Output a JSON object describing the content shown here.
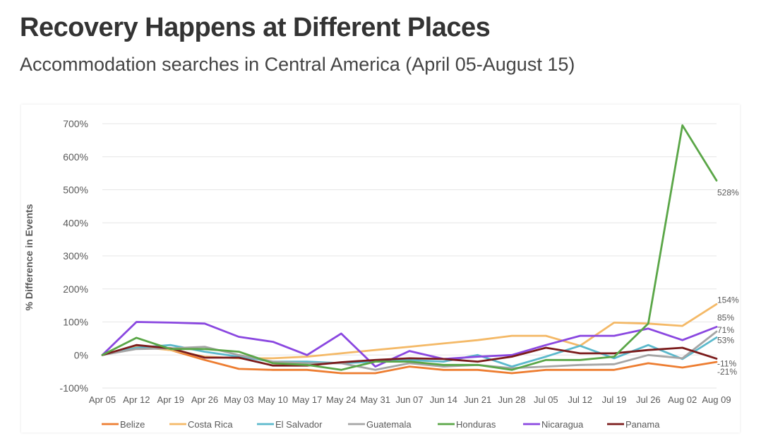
{
  "header": {
    "title": "Recovery Happens at Different Places",
    "subtitle": "Accommodation searches in Central America (April 05-August 15)"
  },
  "chart_data": {
    "type": "line",
    "title": "",
    "xlabel": "",
    "ylabel": "% Difference in Events",
    "ylim": [
      -100,
      700
    ],
    "yticks": [
      -100,
      0,
      100,
      200,
      300,
      400,
      500,
      600,
      700
    ],
    "ytick_labels": [
      "-100%",
      "0%",
      "100%",
      "200%",
      "300%",
      "400%",
      "500%",
      "600%",
      "700%"
    ],
    "categories": [
      "Apr 05",
      "Apr 12",
      "Apr 19",
      "Apr 26",
      "May 03",
      "May 10",
      "May 17",
      "May 24",
      "May 31",
      "Jun 07",
      "Jun 14",
      "Jun 21",
      "Jun 28",
      "Jul 05",
      "Jul 12",
      "Jul 19",
      "Jul 26",
      "Aug 02",
      "Aug 09"
    ],
    "legend_position": "bottom",
    "series": [
      {
        "name": "Belize",
        "color": "#ed7d31",
        "values": [
          0,
          28,
          15,
          -15,
          -42,
          -45,
          -45,
          -55,
          -55,
          -35,
          -45,
          -45,
          -55,
          -45,
          -45,
          -45,
          -25,
          -38,
          -21
        ],
        "end_label": "-21%"
      },
      {
        "name": "Costa Rica",
        "color": "#f4b967",
        "values": [
          0,
          25,
          15,
          -5,
          -10,
          -10,
          -5,
          5,
          15,
          25,
          35,
          45,
          58,
          58,
          28,
          98,
          95,
          88,
          154
        ],
        "end_label": "154%"
      },
      {
        "name": "El Salvador",
        "color": "#5bb9cc",
        "values": [
          0,
          22,
          30,
          10,
          -5,
          -20,
          -20,
          -25,
          -20,
          -15,
          -20,
          0,
          -35,
          -5,
          28,
          -10,
          30,
          -12,
          53
        ],
        "end_label": "53%"
      },
      {
        "name": "Guatemala",
        "color": "#a5a5a5",
        "values": [
          0,
          18,
          20,
          25,
          0,
          -20,
          -25,
          -25,
          -45,
          -25,
          -35,
          -30,
          -40,
          -35,
          -30,
          -28,
          0,
          -10,
          71
        ],
        "end_label": "71%"
      },
      {
        "name": "Honduras",
        "color": "#5aa647",
        "values": [
          0,
          52,
          18,
          18,
          10,
          -25,
          -30,
          -45,
          -20,
          -20,
          -30,
          -30,
          -45,
          -15,
          -15,
          -5,
          95,
          695,
          528
        ],
        "end_label": "528%"
      },
      {
        "name": "Nicaragua",
        "color": "#8a47e0",
        "values": [
          0,
          100,
          98,
          95,
          55,
          40,
          0,
          65,
          -35,
          12,
          -12,
          -5,
          0,
          30,
          58,
          58,
          80,
          45,
          85
        ],
        "end_label": "85%"
      },
      {
        "name": "Panama",
        "color": "#7b1b1b",
        "values": [
          0,
          30,
          20,
          -8,
          -8,
          -32,
          -32,
          -22,
          -15,
          -10,
          -12,
          -20,
          -5,
          22,
          5,
          5,
          15,
          22,
          -11
        ],
        "end_label": "-11%"
      }
    ]
  }
}
